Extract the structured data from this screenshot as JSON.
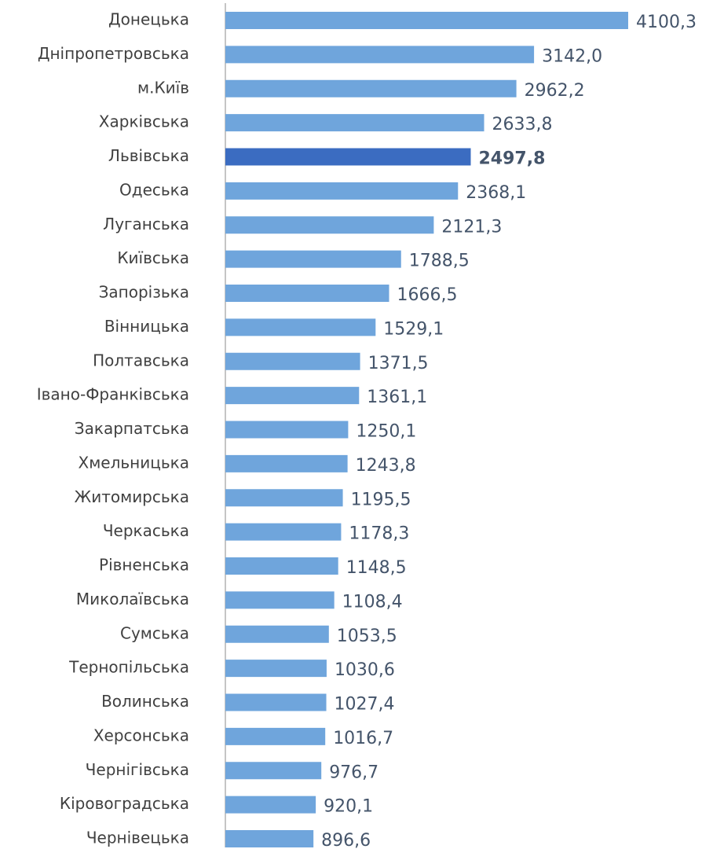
{
  "chart_data": {
    "type": "barh",
    "categories": [
      "Донецька",
      "Дніпропетровська",
      "м.Київ",
      "Харківська",
      "Львівська",
      "Одеська",
      "Луганська",
      "Київська",
      "Запорізька",
      "Вінницька",
      "Полтавська",
      "Івано-Франківська",
      "Закарпатська",
      "Хмельницька",
      "Житомирська",
      "Черкаська",
      "Рівненська",
      "Миколаївська",
      "Сумська",
      "Тернопільська",
      "Волинська",
      "Херсонська",
      "Чернігівська",
      "Кіровоградська",
      "Чернівецька"
    ],
    "values": [
      4100.3,
      3142.0,
      2962.2,
      2633.8,
      2497.8,
      2368.1,
      2121.3,
      1788.5,
      1666.5,
      1529.1,
      1371.5,
      1361.1,
      1250.1,
      1243.8,
      1195.5,
      1178.3,
      1148.5,
      1108.4,
      1053.5,
      1030.6,
      1027.4,
      1016.7,
      976.7,
      920.1,
      896.6
    ],
    "value_labels": [
      "4100,3",
      "3142,0",
      "2962,2",
      "2633,8",
      "2497,8",
      "2368,1",
      "2121,3",
      "1788,5",
      "1666,5",
      "1529,1",
      "1371,5",
      "1361,1",
      "1250,1",
      "1243,8",
      "1195,5",
      "1178,3",
      "1148,5",
      "1108,4",
      "1053,5",
      "1030,6",
      "1027,4",
      "1016,7",
      "976,7",
      "920,1",
      "896,6"
    ],
    "colors": [
      "#6fa5dc",
      "#6fa5dc",
      "#6fa5dc",
      "#6fa5dc",
      "#3b6cc1",
      "#6fa5dc",
      "#6fa5dc",
      "#6fa5dc",
      "#6fa5dc",
      "#6fa5dc",
      "#6fa5dc",
      "#6fa5dc",
      "#6fa5dc",
      "#6fa5dc",
      "#6fa5dc",
      "#6fa5dc",
      "#6fa5dc",
      "#6fa5dc",
      "#6fa5dc",
      "#6fa5dc",
      "#6fa5dc",
      "#6fa5dc",
      "#6fa5dc",
      "#6fa5dc",
      "#6fa5dc"
    ],
    "xlim": [
      0,
      4500
    ]
  }
}
